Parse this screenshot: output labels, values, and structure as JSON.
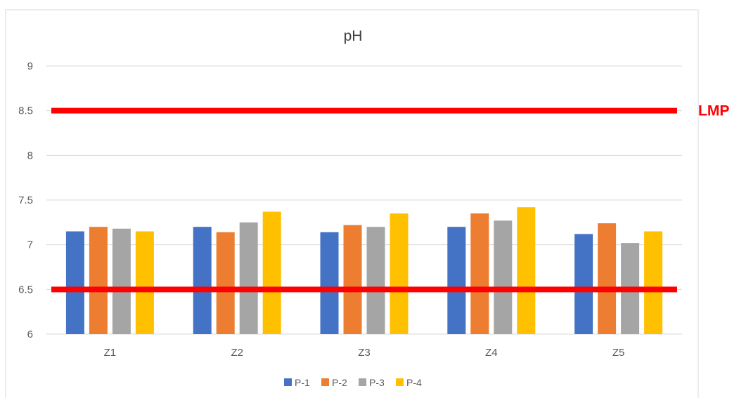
{
  "chart_data": {
    "type": "bar",
    "title": "pH",
    "categories": [
      "Z1",
      "Z2",
      "Z3",
      "Z4",
      "Z5"
    ],
    "series": [
      {
        "name": "P-1",
        "color": "#4472c4",
        "values": [
          7.15,
          7.2,
          7.14,
          7.2,
          7.12
        ]
      },
      {
        "name": "P-2",
        "color": "#ed7d31",
        "values": [
          7.2,
          7.14,
          7.22,
          7.35,
          7.24
        ]
      },
      {
        "name": "P-3",
        "color": "#a5a5a5",
        "values": [
          7.18,
          7.25,
          7.2,
          7.27,
          7.02
        ]
      },
      {
        "name": "P-4",
        "color": "#ffc000",
        "values": [
          7.15,
          7.37,
          7.35,
          7.42,
          7.15
        ]
      }
    ],
    "ylim": [
      6,
      9
    ],
    "yticks": [
      "6",
      "6.5",
      "7",
      "7.5",
      "8",
      "8.5",
      "9"
    ],
    "grid": true,
    "legend_position": "bottom",
    "reference_lines": [
      {
        "value": 8.5,
        "color": "#ff0000",
        "label": "LMP"
      },
      {
        "value": 6.5,
        "color": "#ff0000",
        "label": ""
      }
    ]
  }
}
